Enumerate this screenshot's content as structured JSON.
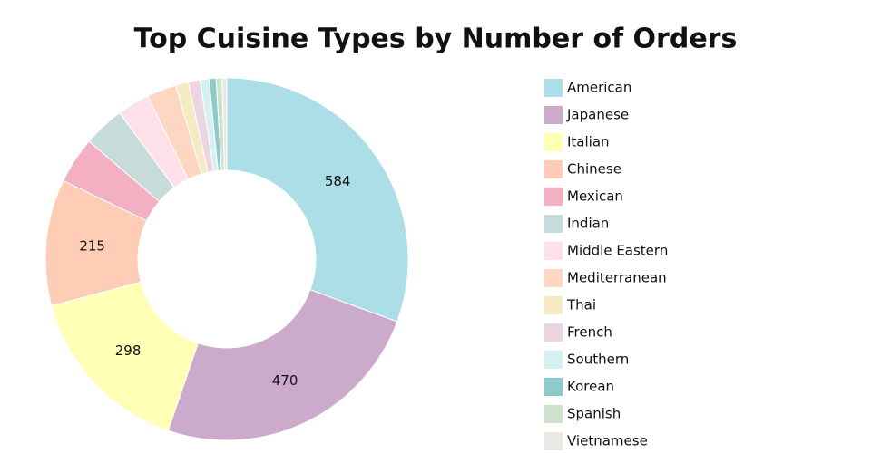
{
  "chart_data": {
    "type": "donut",
    "title": "Top Cuisine Types by Number of Orders",
    "categories": [
      "American",
      "Japanese",
      "Italian",
      "Chinese",
      "Mexican",
      "Indian",
      "Middle Eastern",
      "Mediterranean",
      "Thai",
      "French",
      "Southern",
      "Korean",
      "Spanish",
      "Vietnamese"
    ],
    "values": [
      584,
      470,
      298,
      215,
      79,
      70,
      55,
      50,
      22,
      20,
      15,
      12,
      10,
      8
    ],
    "colors": [
      "#abdee6",
      "#cbaacb",
      "#ffffb5",
      "#ffccb6",
      "#f3b0c3",
      "#c6dbda",
      "#fee1e8",
      "#fed7c3",
      "#f6eac2",
      "#ecd5e3",
      "#d4f0f0",
      "#8fcaca",
      "#cce2cb",
      "#e8e8e4"
    ]
  }
}
